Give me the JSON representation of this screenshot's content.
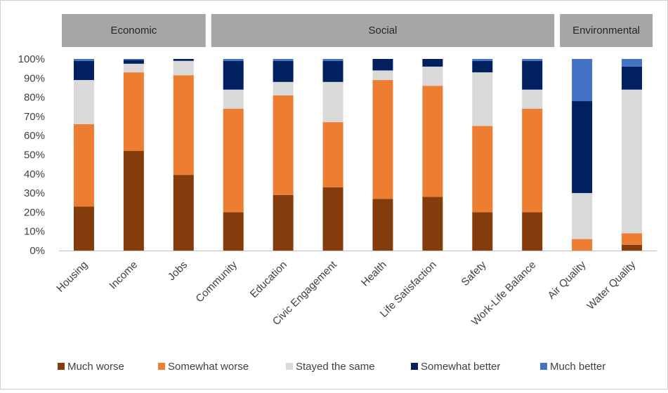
{
  "chart_data": {
    "type": "bar",
    "stacked": true,
    "groups": [
      {
        "label": "Economic",
        "categories": [
          "Housing",
          "Income",
          "Jobs"
        ]
      },
      {
        "label": "Social",
        "categories": [
          "Community",
          "Education",
          "Civic Engagement",
          "Health",
          "Life Satisfaction",
          "Safety",
          "Work-Life Balance"
        ]
      },
      {
        "label": "Environmental",
        "categories": [
          "Air Quality",
          "Water Quality"
        ]
      }
    ],
    "categories": [
      "Housing",
      "Income",
      "Jobs",
      "Community",
      "Education",
      "Civic Engagement",
      "Health",
      "Life Satisfaction",
      "Safety",
      "Work-Life Balance",
      "Air Quality",
      "Water Quality"
    ],
    "series": [
      {
        "name": "Much worse",
        "color": "#843C0C",
        "values": [
          23,
          52,
          39.5,
          20,
          29,
          33,
          27,
          28,
          20,
          20,
          0,
          3
        ]
      },
      {
        "name": "Somewhat worse",
        "color": "#ED7D31",
        "values": [
          43,
          41,
          52,
          54,
          52,
          34,
          62,
          58,
          45,
          54,
          6,
          6
        ]
      },
      {
        "name": "Stayed the same",
        "color": "#D9D9D9",
        "values": [
          23,
          4.5,
          7.5,
          10,
          7,
          21,
          5,
          10,
          28,
          10,
          24,
          75
        ]
      },
      {
        "name": "Somewhat better",
        "color": "#002060",
        "values": [
          10,
          2,
          1,
          15,
          11,
          11,
          6,
          4,
          6,
          15,
          48,
          12
        ]
      },
      {
        "name": "Much better",
        "color": "#4472C4",
        "values": [
          1,
          0.5,
          0,
          1,
          1,
          1,
          0,
          0,
          1,
          1,
          22,
          4
        ]
      }
    ],
    "y_ticks": [
      "0%",
      "10%",
      "20%",
      "30%",
      "40%",
      "50%",
      "60%",
      "70%",
      "80%",
      "90%",
      "100%"
    ],
    "ylim": [
      0,
      100
    ],
    "grid": false,
    "legend_position": "bottom"
  }
}
